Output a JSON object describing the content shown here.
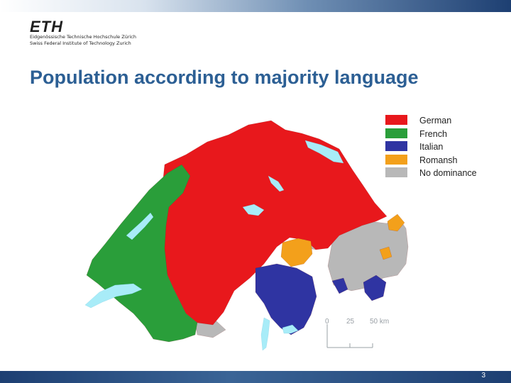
{
  "header": {
    "logo_mark": "ETH",
    "logo_line1": "Eidgenössische Technische Hochschule Zürich",
    "logo_line2": "Swiss Federal Institute of Technology Zurich"
  },
  "slide": {
    "title": "Population according to majority language",
    "page_number": "3"
  },
  "legend": {
    "items": [
      {
        "label": "German",
        "color": "#e8181c"
      },
      {
        "label": "French",
        "color": "#2a9e3a"
      },
      {
        "label": "Italian",
        "color": "#2f34a2"
      },
      {
        "label": "Romansh",
        "color": "#f3a01b"
      },
      {
        "label": "No dominance",
        "color": "#b8b8b8"
      }
    ]
  },
  "map": {
    "lake_color": "#a8ecf8",
    "scale_bar": {
      "ticks": [
        "0",
        "25",
        "50 km"
      ]
    }
  }
}
